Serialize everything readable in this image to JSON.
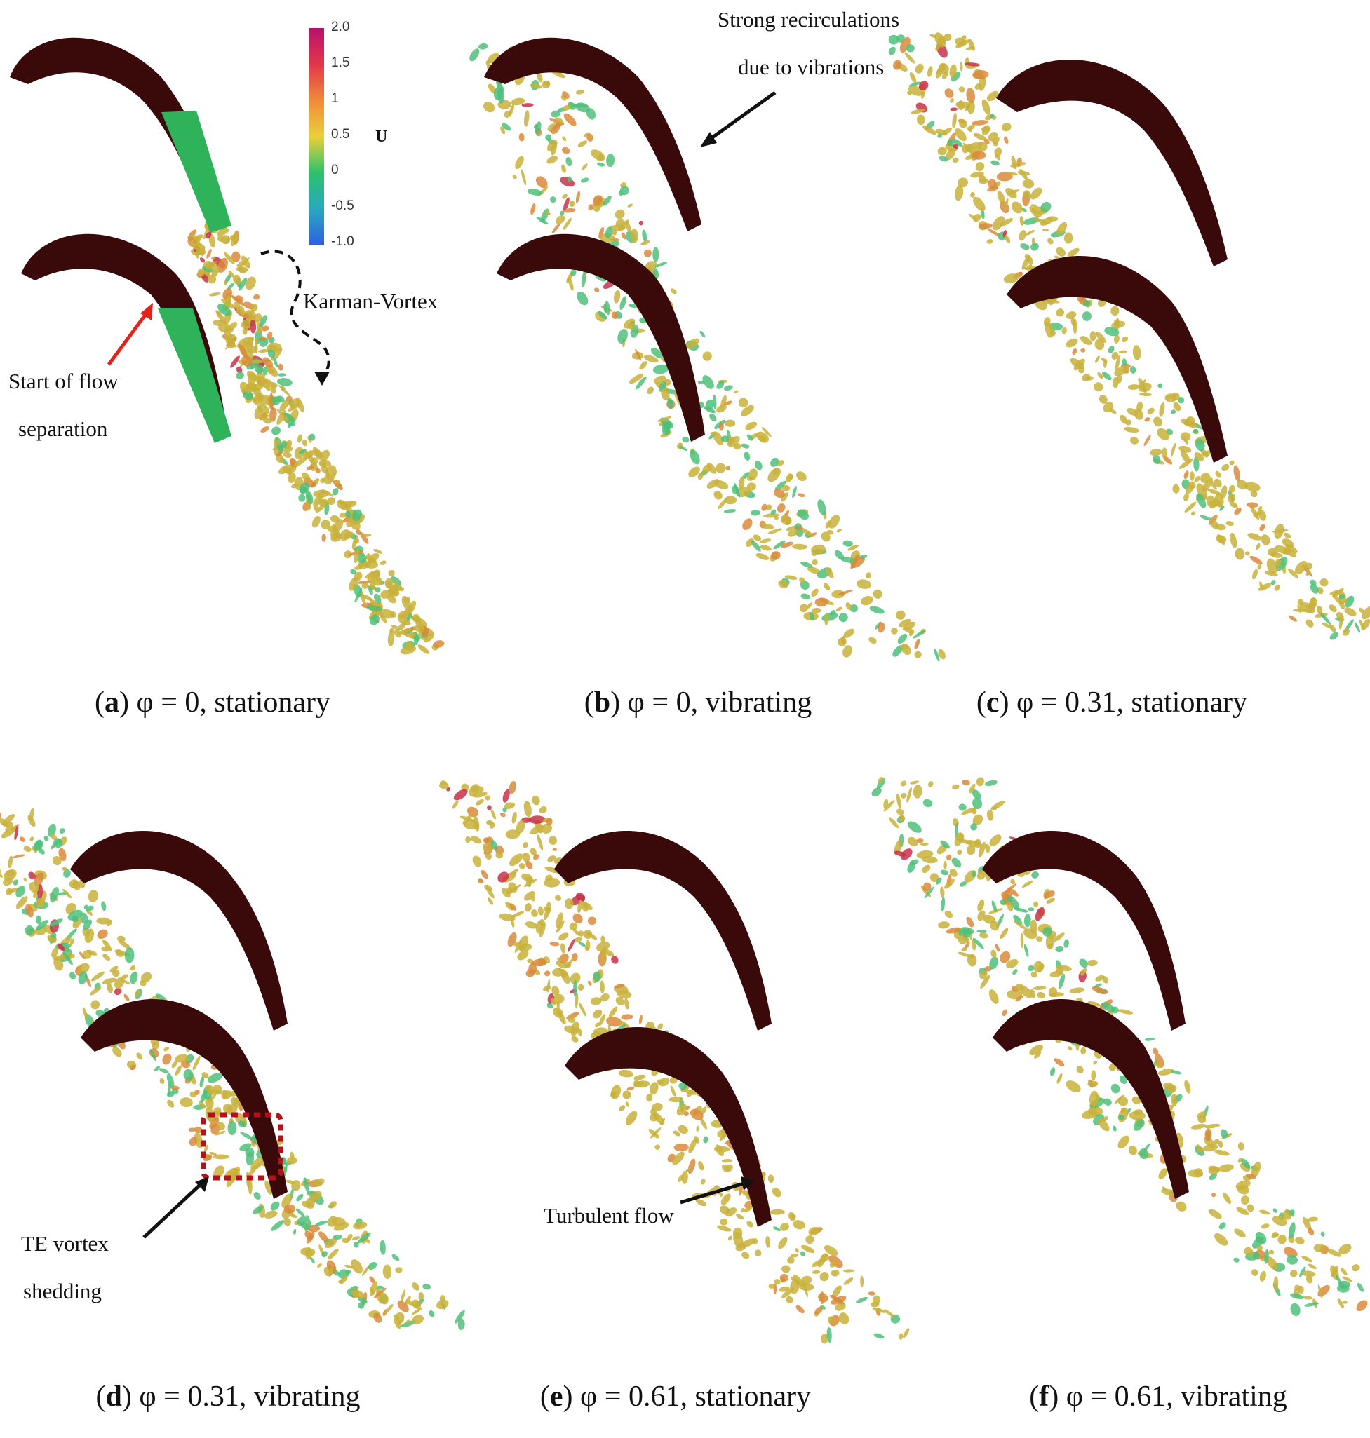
{
  "colorbar": {
    "title": "U",
    "ticks": [
      "2.0",
      "1.5",
      "1",
      "0.5",
      "0",
      "-0.5",
      "-1.0"
    ],
    "colors": [
      "#b5126a",
      "#e2374a",
      "#f08a3a",
      "#e9d13a",
      "#2bc26a",
      "#2aa8c0",
      "#2f5fe0"
    ]
  },
  "panels": [
    {
      "letter": "a",
      "text": "φ = 0, stationary"
    },
    {
      "letter": "b",
      "text": "φ = 0, vibrating"
    },
    {
      "letter": "c",
      "text": "φ = 0.31, stationary"
    },
    {
      "letter": "d",
      "text": "φ = 0.31, vibrating"
    },
    {
      "letter": "e",
      "text": "φ = 0.61, stationary"
    },
    {
      "letter": "f",
      "text": "φ = 0.61, vibrating"
    }
  ],
  "annotations": {
    "karman": "Karman-Vortex",
    "separation_1": "Start of flow",
    "separation_2": "separation",
    "recirc_1": "Strong recirculations",
    "recirc_2": "due to vibrations",
    "te_1": "TE vortex",
    "te_2": "shedding",
    "turbulent": "Turbulent flow"
  },
  "colors": {
    "blade": "#3a0a0a",
    "separated_region": "#2fb35a",
    "vortex_yellow": "#c9b23a",
    "vortex_green": "#4fbf7a",
    "vortex_red": "#c8324a",
    "vortex_orange": "#d98a3a",
    "red_arrow": "#e8201a",
    "te_box": "#b0141a"
  }
}
